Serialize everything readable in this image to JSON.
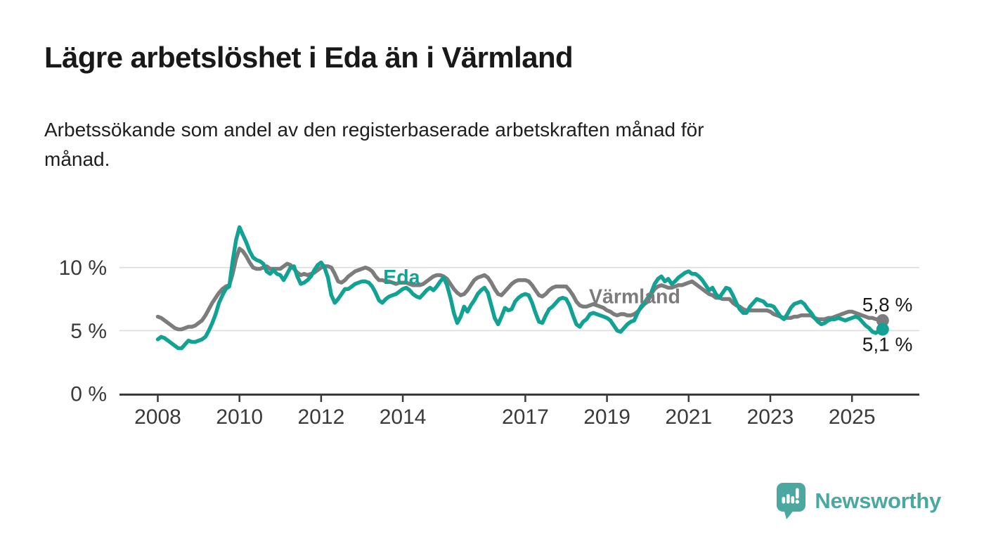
{
  "header": {
    "subtitle_lines": [
      "Arbetssökande som andel av den registerbaserade arbetskraften månad för",
      "månad."
    ]
  },
  "chart_data": {
    "type": "line",
    "title": "Lägre arbetslöshet i Eda än i Värmland",
    "subtitle": "Arbetssökande som andel av den registerbaserade arbetskraften månad för månad.",
    "unit": "%",
    "frequency": "monthly",
    "x_start": 2008.0,
    "x_end": 2025.75,
    "ylim": [
      0,
      14
    ],
    "grid": "horizontal-only",
    "legend": "inline-series-labels",
    "x_ticks": [
      2008,
      2010,
      2012,
      2014,
      2017,
      2019,
      2021,
      2023,
      2025
    ],
    "y_ticks": [
      {
        "value": 0,
        "label": "0 %"
      },
      {
        "value": 5,
        "label": "5 %"
      },
      {
        "value": 10,
        "label": "10 %"
      }
    ],
    "series_labels": [
      {
        "text": "Eda",
        "year": 2013.52,
        "value": 9.25,
        "color": "#11A294"
      },
      {
        "text": "Värmland",
        "year": 2018.56,
        "value": 7.72,
        "color": "#7C7C7C"
      }
    ],
    "series": [
      {
        "name": "Värmland",
        "color": "#7C7C7C",
        "end_label": "5,8 %",
        "end_value": 5.8,
        "end_label_position": "above",
        "values": [
          6.1,
          6.0,
          5.8,
          5.6,
          5.4,
          5.2,
          5.1,
          5.1,
          5.2,
          5.3,
          5.3,
          5.4,
          5.6,
          5.8,
          6.2,
          6.7,
          7.2,
          7.6,
          8.0,
          8.3,
          8.5,
          8.6,
          9.5,
          10.7,
          11.5,
          11.3,
          10.9,
          10.4,
          10.0,
          9.9,
          9.9,
          10.0,
          10.1,
          9.9,
          9.9,
          9.9,
          9.9,
          10.1,
          10.3,
          10.2,
          9.9,
          9.6,
          9.4,
          9.5,
          9.4,
          9.5,
          9.6,
          9.8,
          10.0,
          10.1,
          10.1,
          10.0,
          9.5,
          8.9,
          8.8,
          9.0,
          9.3,
          9.5,
          9.7,
          9.8,
          9.9,
          10.0,
          9.9,
          9.7,
          9.3,
          9.0,
          9.0,
          8.9,
          8.9,
          8.8,
          8.7,
          8.8,
          8.8,
          8.8,
          8.7,
          8.6,
          8.6,
          8.6,
          8.7,
          8.9,
          9.1,
          9.3,
          9.4,
          9.4,
          9.3,
          9.1,
          8.7,
          8.3,
          8.0,
          7.8,
          7.9,
          8.2,
          8.6,
          9.0,
          9.2,
          9.3,
          9.4,
          9.2,
          8.8,
          8.3,
          7.9,
          7.8,
          8.1,
          8.4,
          8.7,
          8.9,
          9.0,
          9.0,
          9.0,
          8.9,
          8.6,
          8.2,
          7.8,
          7.7,
          7.9,
          8.2,
          8.4,
          8.5,
          8.5,
          8.5,
          8.5,
          8.2,
          7.8,
          7.3,
          7.0,
          6.9,
          6.9,
          7.0,
          7.1,
          7.0,
          6.9,
          6.8,
          6.6,
          6.5,
          6.3,
          6.2,
          6.3,
          6.3,
          6.2,
          6.2,
          6.3,
          6.5,
          6.8,
          7.1,
          7.3,
          7.9,
          8.3,
          8.5,
          8.6,
          8.5,
          8.4,
          8.4,
          8.5,
          8.6,
          8.6,
          8.7,
          8.8,
          8.9,
          8.7,
          8.5,
          8.3,
          8.1,
          7.9,
          7.8,
          7.6,
          7.6,
          7.5,
          7.5,
          7.5,
          7.2,
          7.0,
          6.9,
          6.7,
          6.6,
          6.6,
          6.6,
          6.6,
          6.6,
          6.6,
          6.6,
          6.5,
          6.3,
          6.2,
          6.1,
          6.0,
          6.0,
          6.0,
          6.1,
          6.1,
          6.2,
          6.2,
          6.2,
          6.2,
          6.0,
          5.9,
          5.9,
          5.9,
          6.0,
          6.0,
          6.1,
          6.2,
          6.3,
          6.4,
          6.5,
          6.5,
          6.4,
          6.3,
          6.2,
          6.1,
          6.0,
          6.0,
          5.9,
          5.9,
          5.8
        ]
      },
      {
        "name": "Eda",
        "color": "#11A294",
        "end_label": "5,1 %",
        "end_value": 5.1,
        "end_label_position": "below",
        "values": [
          4.3,
          4.5,
          4.4,
          4.2,
          4.0,
          3.8,
          3.6,
          3.6,
          3.9,
          4.2,
          4.1,
          4.1,
          4.2,
          4.3,
          4.5,
          5.0,
          5.6,
          6.3,
          7.2,
          7.8,
          8.3,
          8.5,
          10.5,
          12.2,
          13.2,
          12.6,
          12.0,
          11.3,
          10.8,
          10.6,
          10.5,
          10.3,
          9.7,
          9.5,
          9.8,
          9.5,
          9.4,
          9.0,
          9.5,
          10.0,
          10.1,
          9.3,
          8.7,
          8.8,
          9.0,
          9.3,
          9.8,
          10.2,
          10.4,
          10.0,
          9.2,
          7.8,
          7.2,
          7.5,
          7.9,
          8.3,
          8.3,
          8.5,
          8.7,
          8.8,
          8.9,
          8.9,
          8.8,
          8.5,
          8.0,
          7.4,
          7.2,
          7.5,
          7.7,
          7.8,
          7.9,
          8.1,
          8.3,
          8.4,
          8.2,
          7.9,
          7.7,
          7.6,
          7.9,
          8.2,
          8.4,
          8.2,
          8.5,
          8.9,
          9.2,
          8.6,
          7.6,
          6.4,
          5.6,
          6.1,
          6.9,
          6.5,
          7.0,
          7.4,
          7.9,
          8.2,
          8.4,
          8.0,
          7.0,
          6.0,
          5.5,
          6.1,
          6.8,
          6.6,
          6.7,
          7.3,
          7.6,
          7.8,
          7.9,
          7.8,
          7.2,
          6.4,
          5.7,
          5.6,
          6.2,
          6.7,
          6.9,
          7.2,
          7.5,
          7.6,
          7.5,
          7.0,
          6.2,
          5.5,
          5.3,
          5.7,
          5.9,
          6.3,
          6.4,
          6.3,
          6.2,
          6.1,
          6.0,
          5.8,
          5.4,
          5.0,
          4.9,
          5.2,
          5.5,
          5.7,
          5.8,
          6.4,
          6.9,
          7.2,
          7.6,
          8.0,
          8.7,
          9.1,
          9.3,
          8.9,
          9.1,
          8.7,
          8.9,
          9.2,
          9.4,
          9.6,
          9.7,
          9.5,
          9.5,
          9.3,
          9.0,
          8.6,
          8.2,
          8.4,
          7.9,
          7.6,
          8.0,
          8.4,
          8.3,
          7.8,
          7.2,
          6.7,
          6.4,
          6.4,
          6.9,
          7.2,
          7.5,
          7.4,
          7.3,
          7.0,
          7.0,
          6.9,
          6.5,
          6.1,
          5.9,
          6.3,
          6.8,
          7.1,
          7.2,
          7.3,
          7.1,
          6.7,
          6.4,
          6.0,
          5.7,
          5.5,
          5.6,
          5.8,
          5.9,
          5.9,
          6.0,
          5.9,
          5.8,
          5.9,
          6.0,
          6.1,
          6.0,
          5.7,
          5.4,
          5.2,
          4.9,
          4.8,
          5.0,
          5.1
        ]
      }
    ],
    "colors": {
      "axis": "#3A3A3A",
      "gridline": "#DCDCDC",
      "value_label": "#1B1B1B"
    }
  },
  "footer": {
    "brand": "Newsworthy",
    "brand_color": "#4BA8A1"
  }
}
